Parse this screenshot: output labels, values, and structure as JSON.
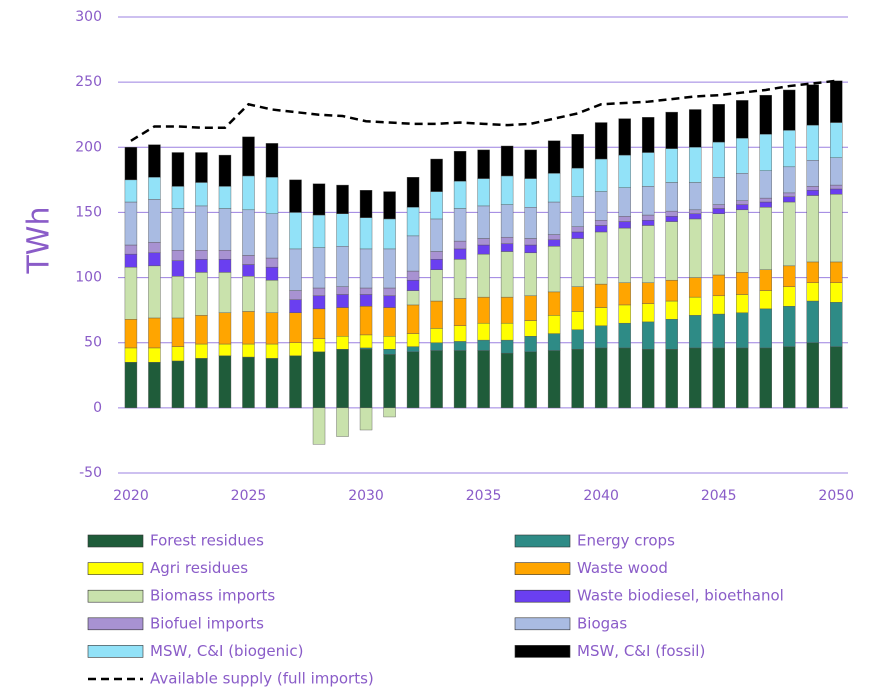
{
  "chart_data": {
    "type": "bar",
    "stacked": true,
    "ylabel": "TWh",
    "x": [
      2020,
      2021,
      2022,
      2023,
      2024,
      2025,
      2026,
      2027,
      2028,
      2029,
      2030,
      2031,
      2032,
      2033,
      2034,
      2035,
      2036,
      2037,
      2038,
      2039,
      2040,
      2041,
      2042,
      2043,
      2044,
      2045,
      2046,
      2047,
      2048,
      2049,
      2050
    ],
    "xlim": [
      2019.45,
      2050.5
    ],
    "xticks": [
      2020,
      2025,
      2030,
      2035,
      2040,
      2045,
      2050
    ],
    "ylim": [
      -50,
      300
    ],
    "yticks": [
      -50,
      0,
      50,
      100,
      150,
      200,
      250,
      300
    ],
    "grid": true,
    "series": [
      {
        "name": "Forest residues",
        "color": "#1f5c3a",
        "values": [
          35,
          35,
          36,
          38,
          40,
          39,
          38,
          40,
          43,
          45,
          45,
          41,
          43,
          44,
          44,
          44,
          42,
          43,
          44,
          45,
          46,
          46,
          45,
          45,
          46,
          46,
          46,
          46,
          47,
          50,
          47
        ]
      },
      {
        "name": "Energy crops",
        "color": "#2e8b86",
        "values": [
          0,
          0,
          0,
          0,
          0,
          0,
          0,
          0,
          0,
          0,
          1,
          4,
          4,
          6,
          7,
          8,
          10,
          12,
          13,
          15,
          17,
          19,
          21,
          23,
          25,
          26,
          27,
          30,
          31,
          32,
          34
        ]
      },
      {
        "name": "Agri residues",
        "color": "#ffff00",
        "values": [
          11,
          11,
          11,
          11,
          9,
          10,
          11,
          10,
          10,
          10,
          10,
          10,
          10,
          11,
          12,
          13,
          13,
          12,
          14,
          14,
          14,
          14,
          14,
          14,
          14,
          14,
          14,
          14,
          15,
          14,
          15
        ]
      },
      {
        "name": "Waste wood",
        "color": "#ffa500",
        "values": [
          22,
          23,
          22,
          22,
          24,
          25,
          24,
          23,
          23,
          22,
          22,
          22,
          22,
          21,
          21,
          20,
          20,
          19,
          18,
          19,
          18,
          17,
          16,
          16,
          15,
          16,
          17,
          16,
          16,
          16,
          16
        ]
      },
      {
        "name": "Biomass imports",
        "color": "#c9e2ac",
        "values": [
          40,
          40,
          32,
          33,
          31,
          27,
          25,
          0,
          -28,
          -22,
          -17,
          -7,
          11,
          24,
          30,
          33,
          35,
          33,
          35,
          37,
          40,
          42,
          44,
          45,
          45,
          47,
          48,
          48,
          49,
          51,
          52
        ]
      },
      {
        "name": "Waste biodiesel, bioethanol",
        "color": "#6a3ff0",
        "values": [
          10,
          10,
          12,
          10,
          10,
          9,
          10,
          10,
          10,
          10,
          9,
          9,
          8,
          8,
          8,
          7,
          6,
          6,
          5,
          5,
          5,
          5,
          4,
          4,
          4,
          4,
          4,
          4,
          4,
          4,
          4
        ]
      },
      {
        "name": "Biofuel imports",
        "color": "#a892d2",
        "values": [
          7,
          8,
          8,
          7,
          7,
          7,
          7,
          7,
          6,
          6,
          5,
          6,
          7,
          6,
          6,
          5,
          5,
          5,
          4,
          4,
          4,
          4,
          4,
          4,
          3,
          3,
          3,
          3,
          3,
          3,
          3
        ]
      },
      {
        "name": "Biogas",
        "color": "#a9bbe2",
        "values": [
          33,
          33,
          32,
          34,
          32,
          35,
          34,
          32,
          31,
          31,
          30,
          30,
          27,
          25,
          25,
          25,
          25,
          24,
          25,
          23,
          22,
          22,
          22,
          22,
          21,
          21,
          21,
          21,
          20,
          20,
          21
        ]
      },
      {
        "name": "MSW, C&I (biogenic)",
        "color": "#92e2f8",
        "values": [
          17,
          17,
          17,
          18,
          17,
          26,
          28,
          28,
          25,
          25,
          24,
          23,
          22,
          21,
          21,
          21,
          22,
          22,
          22,
          22,
          25,
          25,
          26,
          26,
          27,
          27,
          27,
          28,
          28,
          27,
          27
        ]
      },
      {
        "name": "MSW, C&I (fossil)",
        "color": "#000000",
        "values": [
          25,
          25,
          26,
          23,
          24,
          30,
          26,
          25,
          24,
          22,
          21,
          21,
          23,
          25,
          23,
          22,
          23,
          22,
          25,
          26,
          28,
          28,
          27,
          28,
          29,
          29,
          29,
          30,
          31,
          31,
          32
        ]
      },
      {
        "name": "Available supply (full imports)",
        "type": "line",
        "color": "#000000",
        "values": [
          205,
          216,
          216,
          215,
          215,
          233,
          229,
          227,
          225,
          224,
          220,
          219,
          218,
          218,
          219,
          218,
          217,
          218,
          222,
          226,
          233,
          234,
          235,
          237,
          239,
          240,
          242,
          244,
          247,
          249,
          251
        ]
      }
    ]
  }
}
